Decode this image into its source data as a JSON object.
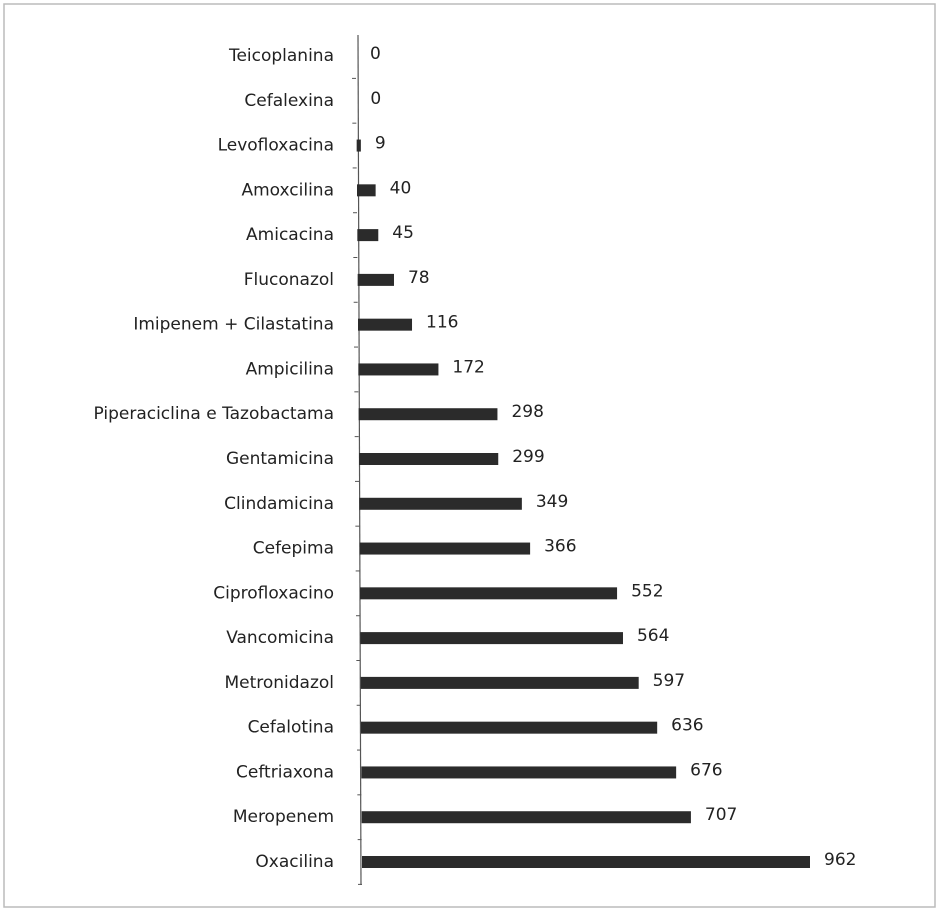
{
  "chart_data": {
    "type": "bar",
    "orientation": "horizontal",
    "categories": [
      "Teicoplanina",
      "Cefalexina",
      "Levofloxacina",
      "Amoxcilina",
      "Amicacina",
      "Fluconazol",
      "Imipenem + Cilastatina",
      "Ampicilina",
      "Piperaciclina e Tazobactama",
      "Gentamicina",
      "Clindamicina",
      "Cefepima",
      "Ciprofloxacino",
      "Vancomicina",
      "Metronidazol",
      "Cefalotina",
      "Ceftriaxona",
      "Meropenem",
      "Oxacilina"
    ],
    "values": [
      0,
      0,
      9,
      40,
      45,
      78,
      116,
      172,
      298,
      299,
      349,
      366,
      552,
      564,
      597,
      636,
      676,
      707,
      962
    ],
    "color": "#2b2b2b"
  }
}
